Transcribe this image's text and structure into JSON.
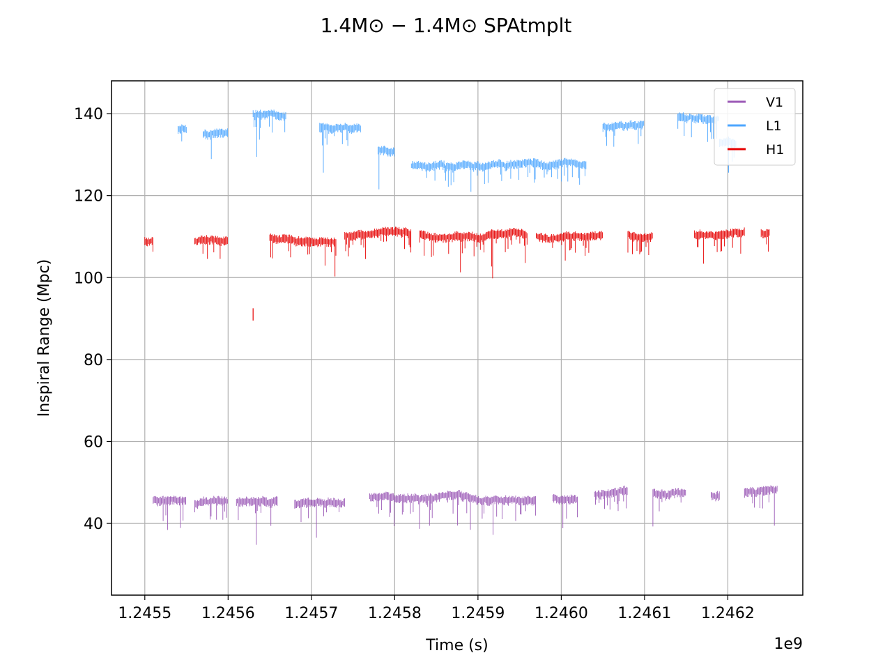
{
  "chart_data": {
    "type": "scatter",
    "title": "1.4M⊙ − 1.4M⊙ SPAtmplt",
    "xlabel": "Time (s)",
    "ylabel": "Inspiral Range (Mpc)",
    "x_offset_label": "1e9",
    "xlim": [
      1.24546,
      1.24629
    ],
    "ylim": [
      22.5,
      148
    ],
    "x_scale_factor": 1000000000,
    "xticks": [
      1.2455,
      1.2456,
      1.2457,
      1.2458,
      1.2459,
      1.246,
      1.2461,
      1.2462
    ],
    "xtick_labels": [
      "1.2455",
      "1.2456",
      "1.2457",
      "1.2458",
      "1.2459",
      "1.2460",
      "1.2461",
      "1.2462"
    ],
    "yticks": [
      40,
      60,
      80,
      100,
      120,
      140
    ],
    "ytick_labels": [
      "40",
      "60",
      "80",
      "100",
      "120",
      "140"
    ],
    "grid": true,
    "legend_placement": "top-right",
    "series": [
      {
        "name": "V1",
        "color": "#9b59b6",
        "segments": [
          {
            "x0": 1.24551,
            "x1": 1.24555,
            "mean": 45.6
          },
          {
            "x0": 1.24556,
            "x1": 1.2456,
            "mean": 44.9
          },
          {
            "x0": 1.24561,
            "x1": 1.24566,
            "mean": 45.3
          },
          {
            "x0": 1.24568,
            "x1": 1.24574,
            "mean": 45.1
          },
          {
            "x0": 1.24577,
            "x1": 1.24588,
            "mean": 46.5
          },
          {
            "x0": 1.24588,
            "x1": 1.24597,
            "mean": 46.8
          },
          {
            "x0": 1.24599,
            "x1": 1.24602,
            "mean": 46.0
          },
          {
            "x0": 1.24604,
            "x1": 1.24608,
            "mean": 47.3
          },
          {
            "x0": 1.24611,
            "x1": 1.24615,
            "mean": 47.6
          },
          {
            "x0": 1.24618,
            "x1": 1.24619,
            "mean": 46.8
          },
          {
            "x0": 1.24622,
            "x1": 1.24626,
            "mean": 47.5
          }
        ]
      },
      {
        "name": "L1",
        "color": "#4da6ff",
        "segments": [
          {
            "x0": 1.24554,
            "x1": 1.24555,
            "mean": 136
          },
          {
            "x0": 1.24557,
            "x1": 1.2456,
            "mean": 135
          },
          {
            "x0": 1.24563,
            "x1": 1.24567,
            "mean": 140
          },
          {
            "x0": 1.24571,
            "x1": 1.24576,
            "mean": 137
          },
          {
            "x0": 1.24578,
            "x1": 1.2458,
            "mean": 131
          },
          {
            "x0": 1.24582,
            "x1": 1.24586,
            "mean": 127.5
          },
          {
            "x0": 1.24586,
            "x1": 1.24591,
            "mean": 127
          },
          {
            "x0": 1.24591,
            "x1": 1.24603,
            "mean": 127.5
          },
          {
            "x0": 1.24605,
            "x1": 1.2461,
            "mean": 137
          },
          {
            "x0": 1.24614,
            "x1": 1.24619,
            "mean": 139.5
          },
          {
            "x0": 1.24619,
            "x1": 1.24621,
            "mean": 133
          }
        ]
      },
      {
        "name": "H1",
        "color": "#e60000",
        "segments": [
          {
            "x0": 1.2455,
            "x1": 1.24551,
            "mean": 109
          },
          {
            "x0": 1.24556,
            "x1": 1.2456,
            "mean": 109
          },
          {
            "x0": 1.24565,
            "x1": 1.24573,
            "mean": 110
          },
          {
            "x0": 1.24574,
            "x1": 1.24582,
            "mean": 110.3
          },
          {
            "x0": 1.24583,
            "x1": 1.24591,
            "mean": 111
          },
          {
            "x0": 1.24591,
            "x1": 1.24596,
            "mean": 110.5
          },
          {
            "x0": 1.24597,
            "x1": 1.24605,
            "mean": 110.3
          },
          {
            "x0": 1.24608,
            "x1": 1.24611,
            "mean": 110.3
          },
          {
            "x0": 1.24616,
            "x1": 1.24622,
            "mean": 110.5
          },
          {
            "x0": 1.24624,
            "x1": 1.24625,
            "mean": 110.8
          }
        ]
      }
    ],
    "outlier_points": [
      {
        "series": "H1",
        "x": 1.24563,
        "y": 91
      }
    ]
  }
}
